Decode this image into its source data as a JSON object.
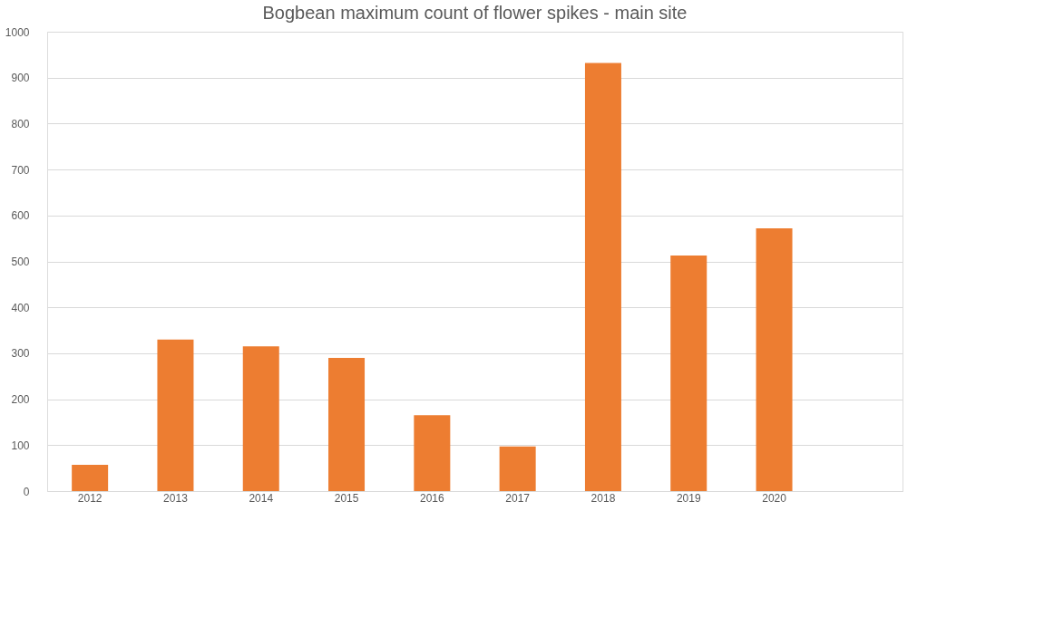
{
  "chart_data": {
    "type": "bar",
    "title": "Bogbean maximum count of flower spikes - main site",
    "categories": [
      "2012",
      "2013",
      "2014",
      "2015",
      "2016",
      "2017",
      "2018",
      "2019",
      "2020",
      null
    ],
    "values": [
      57,
      330,
      315,
      290,
      165,
      97,
      932,
      513,
      572,
      null
    ],
    "color": "#ed7d31",
    "ylim": [
      0,
      1000
    ],
    "yticks": [
      0,
      100,
      200,
      300,
      400,
      500,
      600,
      700,
      800,
      900,
      1000
    ],
    "grid": "y"
  }
}
